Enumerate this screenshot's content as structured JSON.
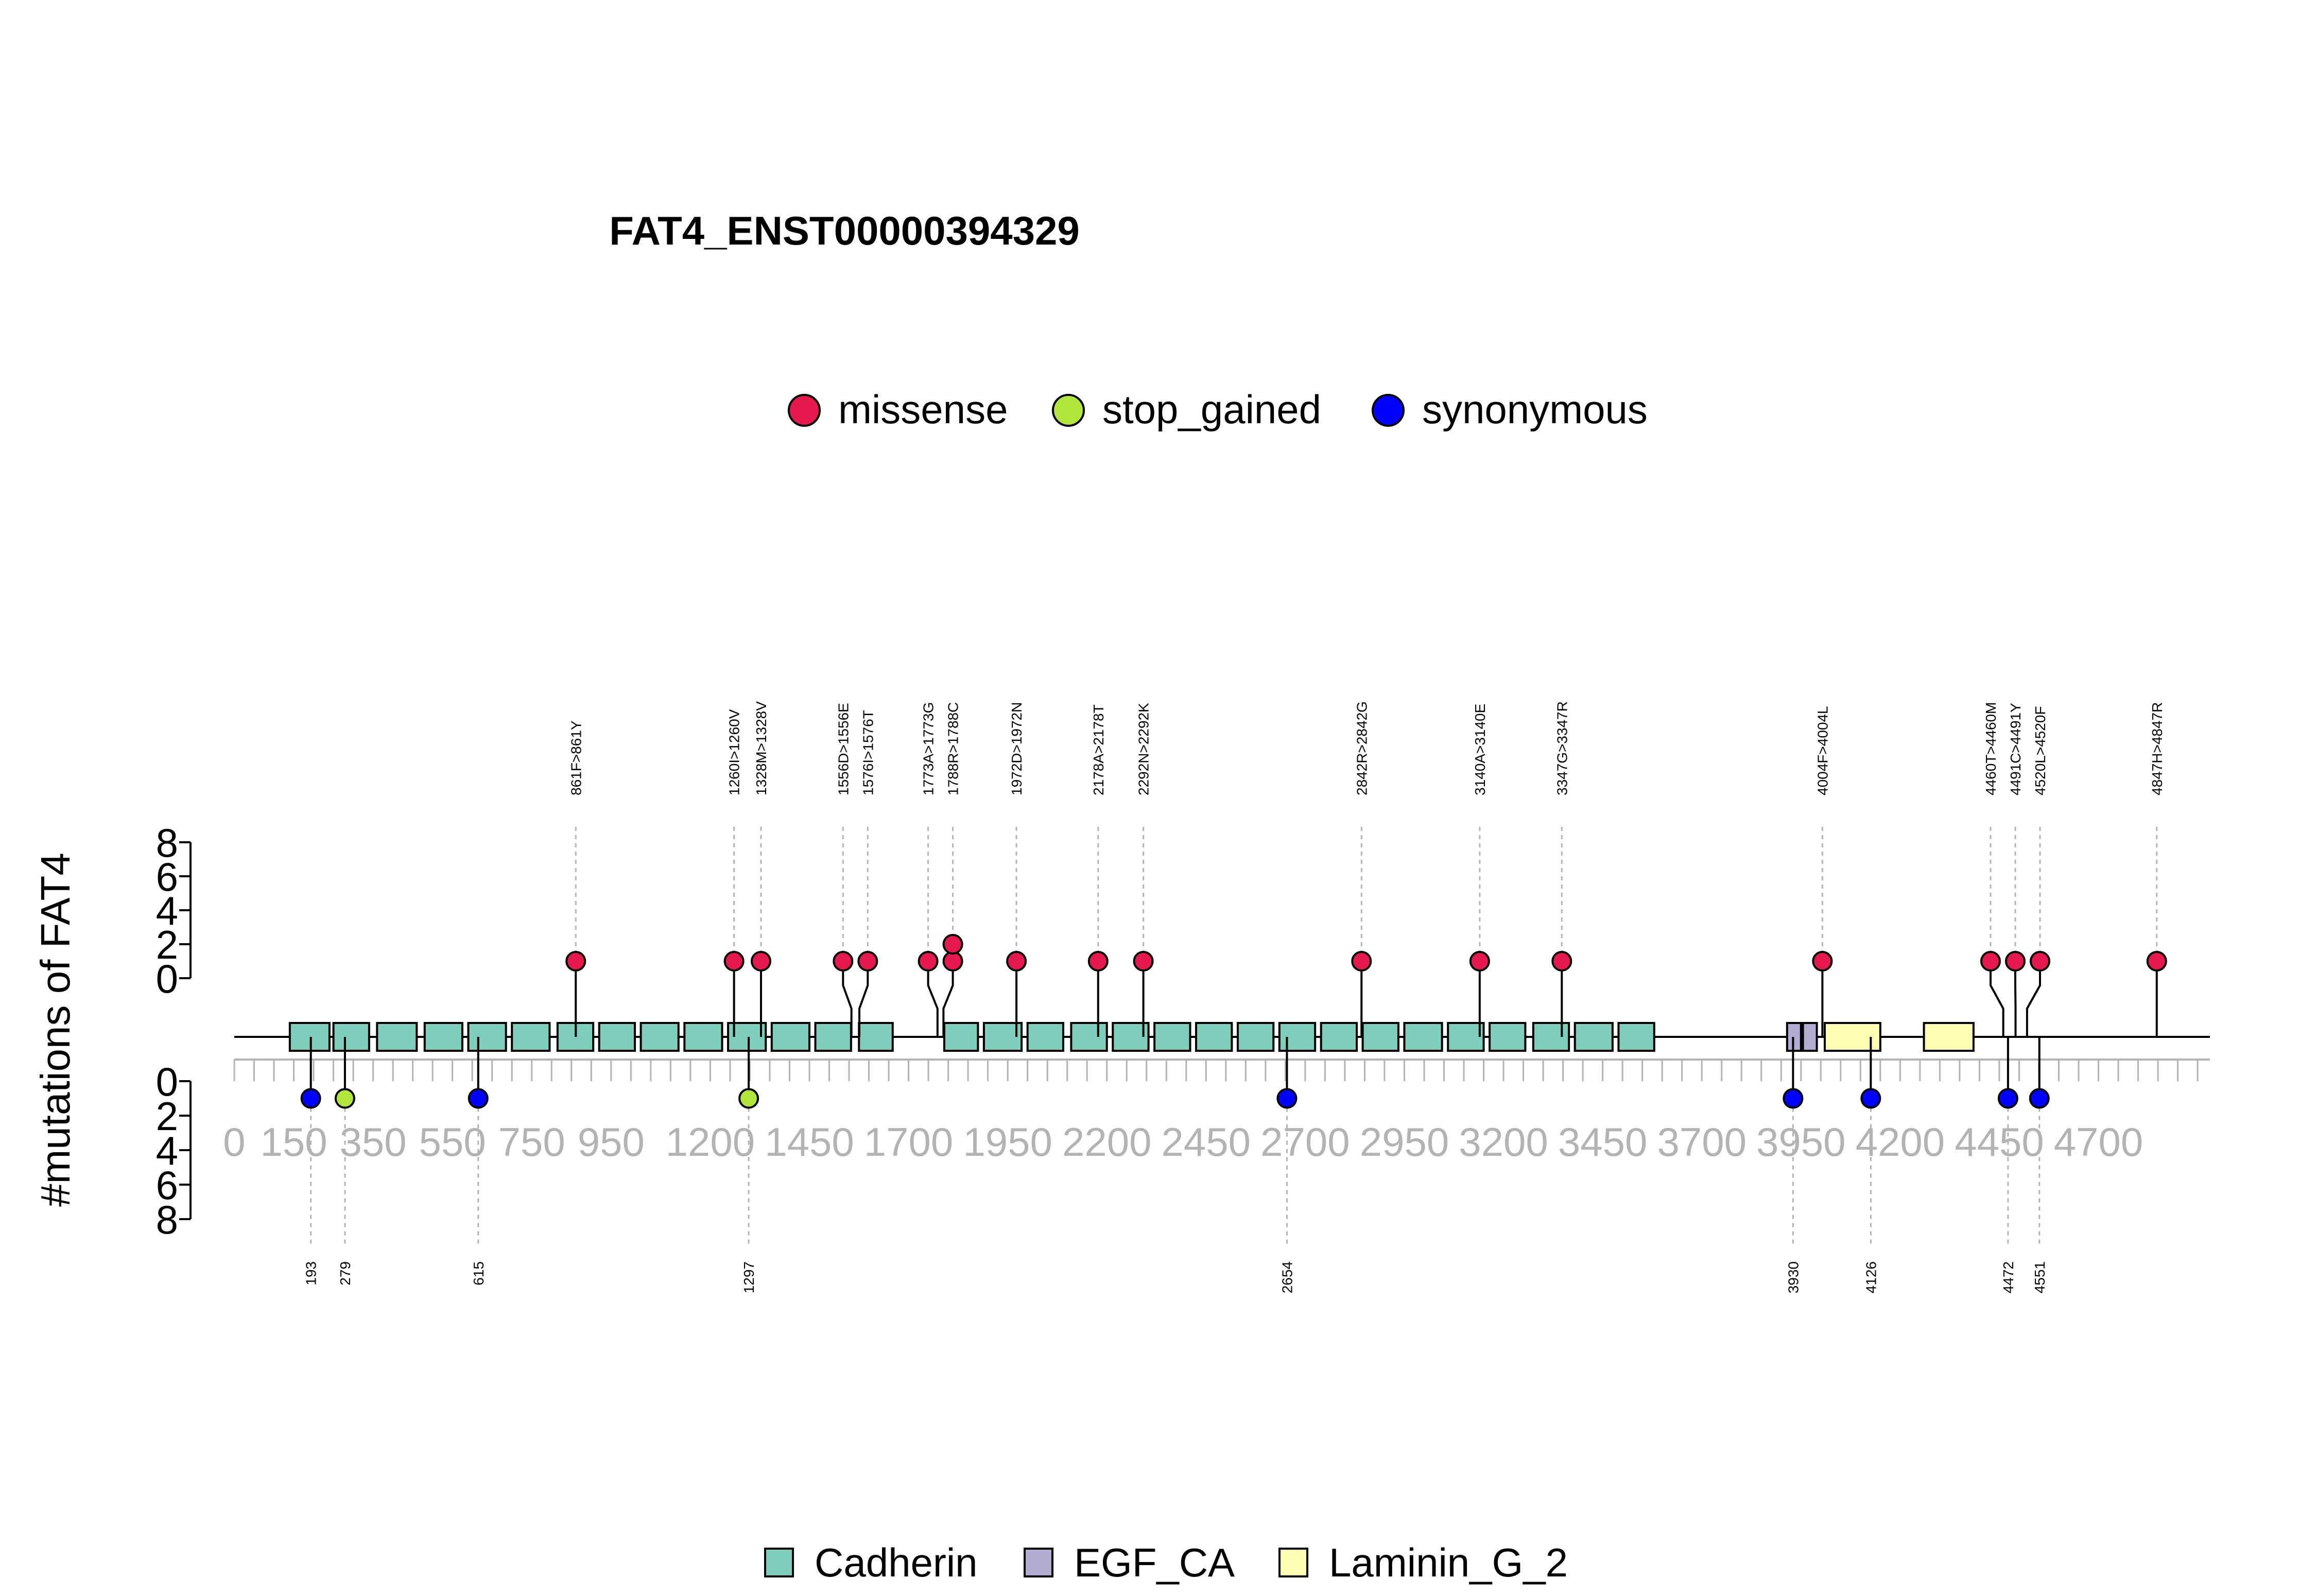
{
  "chart_data": {
    "type": "lollipop",
    "title": "FAT4_ENST00000394329",
    "ylabel": "#mutations of FAT4",
    "protein_length": 4981,
    "x_ticks": [
      0,
      150,
      350,
      550,
      750,
      950,
      1200,
      1450,
      1700,
      1950,
      2200,
      2450,
      2700,
      2950,
      3200,
      3450,
      3700,
      3950,
      4200,
      4450,
      4700
    ],
    "y_ticks_upper": [
      8,
      6,
      4,
      2,
      0
    ],
    "y_ticks_lower": [
      0,
      2,
      4,
      6,
      8
    ],
    "ylim": [
      0,
      8
    ],
    "mutation_types": [
      {
        "name": "missense",
        "color": "#E31A4B"
      },
      {
        "name": "stop_gained",
        "color": "#B2E63C"
      },
      {
        "name": "synonymous",
        "color": "#0000FF"
      }
    ],
    "domain_types": [
      {
        "name": "Cadherin",
        "color": "#7FCDBB"
      },
      {
        "name": "EGF_CA",
        "color": "#B2ABD2"
      },
      {
        "name": "Laminin_G_2",
        "color": "#FFFFB3"
      }
    ],
    "mutations_top": [
      {
        "position": 861,
        "label": "861F>861Y",
        "count": 1,
        "type": "missense"
      },
      {
        "position": 1260,
        "label": "1260I>1260V",
        "count": 1,
        "type": "missense"
      },
      {
        "position": 1328,
        "label": "1328M>1328V",
        "count": 1,
        "type": "missense"
      },
      {
        "position": 1556,
        "label": "1556D>1556E",
        "count": 1,
        "type": "missense"
      },
      {
        "position": 1576,
        "label": "1576I>1576T",
        "count": 1,
        "type": "missense"
      },
      {
        "position": 1773,
        "label": "1773A>1773G",
        "count": 1,
        "type": "missense"
      },
      {
        "position": 1788,
        "label": "1788R>1788C",
        "count": 2,
        "type": "missense"
      },
      {
        "position": 1972,
        "label": "1972D>1972N",
        "count": 1,
        "type": "missense"
      },
      {
        "position": 2178,
        "label": "2178A>2178T",
        "count": 1,
        "type": "missense"
      },
      {
        "position": 2292,
        "label": "2292N>2292K",
        "count": 1,
        "type": "missense"
      },
      {
        "position": 2842,
        "label": "2842R>2842G",
        "count": 1,
        "type": "missense"
      },
      {
        "position": 3140,
        "label": "3140A>3140E",
        "count": 1,
        "type": "missense"
      },
      {
        "position": 3347,
        "label": "3347G>3347R",
        "count": 1,
        "type": "missense"
      },
      {
        "position": 4004,
        "label": "4004F>4004L",
        "count": 1,
        "type": "missense"
      },
      {
        "position": 4460,
        "label": "4460T>4460M",
        "count": 1,
        "type": "missense"
      },
      {
        "position": 4491,
        "label": "4491C>4491Y",
        "count": 1,
        "type": "missense"
      },
      {
        "position": 4520,
        "label": "4520L>4520F",
        "count": 1,
        "type": "missense"
      },
      {
        "position": 4847,
        "label": "4847H>4847R",
        "count": 1,
        "type": "missense"
      }
    ],
    "mutations_bottom": [
      {
        "position": 193,
        "label": "193",
        "count": 1,
        "type": "synonymous"
      },
      {
        "position": 279,
        "label": "279",
        "count": 1,
        "type": "stop_gained"
      },
      {
        "position": 615,
        "label": "615",
        "count": 1,
        "type": "synonymous"
      },
      {
        "position": 1297,
        "label": "1297",
        "count": 1,
        "type": "stop_gained"
      },
      {
        "position": 2654,
        "label": "2654",
        "count": 1,
        "type": "synonymous"
      },
      {
        "position": 3930,
        "label": "3930",
        "count": 1,
        "type": "synonymous"
      },
      {
        "position": 4126,
        "label": "4126",
        "count": 1,
        "type": "synonymous"
      },
      {
        "position": 4472,
        "label": "4472",
        "count": 1,
        "type": "synonymous"
      },
      {
        "position": 4551,
        "label": "4551",
        "count": 1,
        "type": "synonymous"
      }
    ],
    "domains": [
      {
        "type": "Cadherin",
        "start": 140,
        "end": 240
      },
      {
        "type": "Cadherin",
        "start": 250,
        "end": 340
      },
      {
        "type": "Cadherin",
        "start": 360,
        "end": 460
      },
      {
        "type": "Cadherin",
        "start": 480,
        "end": 575
      },
      {
        "type": "Cadherin",
        "start": 590,
        "end": 685
      },
      {
        "type": "Cadherin",
        "start": 700,
        "end": 795
      },
      {
        "type": "Cadherin",
        "start": 815,
        "end": 905
      },
      {
        "type": "Cadherin",
        "start": 920,
        "end": 1010
      },
      {
        "type": "Cadherin",
        "start": 1025,
        "end": 1120
      },
      {
        "type": "Cadherin",
        "start": 1135,
        "end": 1230
      },
      {
        "type": "Cadherin",
        "start": 1245,
        "end": 1340
      },
      {
        "type": "Cadherin",
        "start": 1355,
        "end": 1450
      },
      {
        "type": "Cadherin",
        "start": 1465,
        "end": 1555
      },
      {
        "type": "Cadherin",
        "start": 1575,
        "end": 1660
      },
      {
        "type": "Cadherin",
        "start": 1790,
        "end": 1875
      },
      {
        "type": "Cadherin",
        "start": 1890,
        "end": 1985
      },
      {
        "type": "Cadherin",
        "start": 2000,
        "end": 2090
      },
      {
        "type": "Cadherin",
        "start": 2110,
        "end": 2200
      },
      {
        "type": "Cadherin",
        "start": 2215,
        "end": 2305
      },
      {
        "type": "Cadherin",
        "start": 2320,
        "end": 2410
      },
      {
        "type": "Cadherin",
        "start": 2425,
        "end": 2515
      },
      {
        "type": "Cadherin",
        "start": 2530,
        "end": 2620
      },
      {
        "type": "Cadherin",
        "start": 2635,
        "end": 2725
      },
      {
        "type": "Cadherin",
        "start": 2740,
        "end": 2830
      },
      {
        "type": "Cadherin",
        "start": 2845,
        "end": 2935
      },
      {
        "type": "Cadherin",
        "start": 2950,
        "end": 3045
      },
      {
        "type": "Cadherin",
        "start": 3060,
        "end": 3150
      },
      {
        "type": "Cadherin",
        "start": 3165,
        "end": 3255
      },
      {
        "type": "Cadherin",
        "start": 3275,
        "end": 3365
      },
      {
        "type": "Cadherin",
        "start": 3380,
        "end": 3475
      },
      {
        "type": "Cadherin",
        "start": 3490,
        "end": 3580
      },
      {
        "type": "EGF_CA",
        "start": 3915,
        "end": 3950
      },
      {
        "type": "EGF_CA",
        "start": 3955,
        "end": 3990
      },
      {
        "type": "Laminin_G_2",
        "start": 4010,
        "end": 4150
      },
      {
        "type": "Laminin_G_2",
        "start": 4260,
        "end": 4385
      }
    ]
  }
}
